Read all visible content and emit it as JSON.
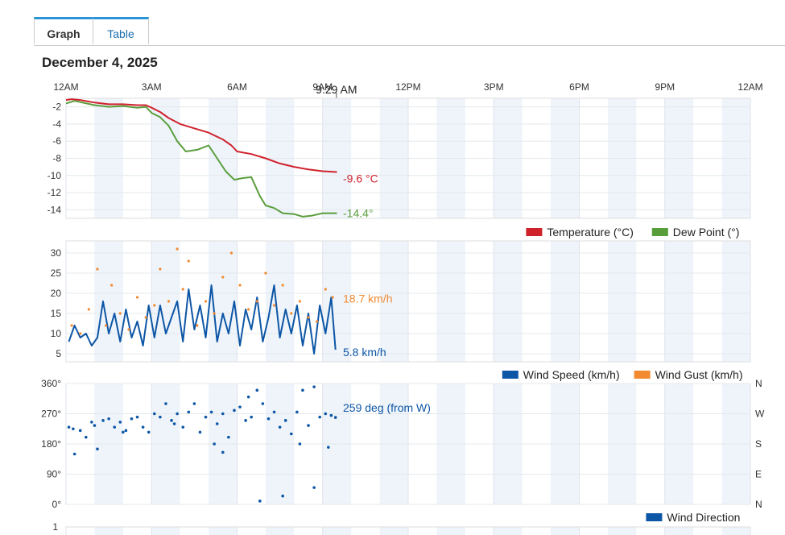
{
  "tabs": [
    {
      "label": "Graph",
      "active": true
    },
    {
      "label": "Table",
      "active": false
    }
  ],
  "date": "December 4, 2025",
  "time_labels": [
    "12AM",
    "3AM",
    "6AM",
    "9AM",
    "12PM",
    "3PM",
    "6PM",
    "9PM",
    "12AM"
  ],
  "cursor_label": "9:29 AM",
  "chart_data": [
    {
      "type": "line",
      "x_range_hours": [
        0,
        24
      ],
      "x_ticks": [
        "12AM",
        "3AM",
        "6AM",
        "9AM",
        "12PM",
        "3PM",
        "6PM",
        "9PM",
        "12AM"
      ],
      "y_ticks": [
        "-2",
        "-4",
        "-6",
        "-8",
        "-10",
        "-12",
        "-14"
      ],
      "ylim": [
        -15,
        -1
      ],
      "series": [
        {
          "name": "Temperature (°C)",
          "color": "#d0222d",
          "x": [
            0,
            0.2,
            0.5,
            1,
            1.5,
            2,
            2.5,
            2.8,
            3,
            3.3,
            3.6,
            4,
            4.5,
            5,
            5.5,
            5.8,
            6,
            6.5,
            7,
            7.5,
            8,
            8.5,
            9,
            9.5,
            9.5
          ],
          "y": [
            -1.2,
            -1.1,
            -1.2,
            -1.5,
            -1.7,
            -1.7,
            -1.8,
            -1.8,
            -2.1,
            -2.6,
            -3.3,
            -4.0,
            -4.5,
            -5.0,
            -5.8,
            -6.5,
            -7.2,
            -7.5,
            -8.0,
            -8.6,
            -9.0,
            -9.3,
            -9.5,
            -9.6,
            -9.6
          ]
        },
        {
          "name": "Dew Point (°)",
          "color": "#5a9e3c",
          "x": [
            0,
            0.3,
            1,
            1.5,
            2,
            2.5,
            2.8,
            3,
            3.3,
            3.6,
            3.9,
            4.2,
            4.6,
            5,
            5.3,
            5.6,
            5.9,
            6.2,
            6.5,
            6.8,
            7,
            7.3,
            7.6,
            8,
            8.3,
            8.6,
            9,
            9.3,
            9.5
          ],
          "y": [
            -1.6,
            -1.3,
            -1.8,
            -2.0,
            -1.9,
            -2.1,
            -2.0,
            -2.7,
            -3.2,
            -4.2,
            -6.0,
            -7.2,
            -7.0,
            -6.5,
            -8.0,
            -9.5,
            -10.5,
            -10.3,
            -10.2,
            -12.4,
            -13.5,
            -13.8,
            -14.4,
            -14.5,
            -14.8,
            -14.7,
            -14.4,
            -14.4,
            -14.4
          ]
        }
      ],
      "current_labels": [
        {
          "text": "-9.6 °C",
          "color": "#d0222d",
          "value": -9.6
        },
        {
          "text": "-14.4°",
          "color": "#5a9e3c",
          "value": -14.4
        }
      ],
      "legend": [
        {
          "label": "Temperature (°C)",
          "color": "#d0222d"
        },
        {
          "label": "Dew Point (°)",
          "color": "#5a9e3c"
        }
      ],
      "legend_position": "bottom-right"
    },
    {
      "type": "line",
      "x_range_hours": [
        0,
        24
      ],
      "y_ticks": [
        "30",
        "25",
        "20",
        "15",
        "10",
        "5"
      ],
      "ylim": [
        3,
        33
      ],
      "series": [
        {
          "name": "Wind Speed (km/h)",
          "color": "#0d56a6",
          "x": [
            0.1,
            0.3,
            0.5,
            0.7,
            0.9,
            1.1,
            1.3,
            1.5,
            1.7,
            1.9,
            2.1,
            2.3,
            2.5,
            2.7,
            2.9,
            3.1,
            3.3,
            3.5,
            3.7,
            3.9,
            4.1,
            4.3,
            4.5,
            4.7,
            4.9,
            5.1,
            5.3,
            5.5,
            5.7,
            5.9,
            6.1,
            6.3,
            6.5,
            6.7,
            6.9,
            7.1,
            7.3,
            7.5,
            7.7,
            7.9,
            8.1,
            8.3,
            8.5,
            8.7,
            8.9,
            9.1,
            9.3,
            9.45
          ],
          "y": [
            8,
            12,
            9,
            10,
            7,
            9,
            18,
            10,
            15,
            8,
            16,
            9,
            13,
            7,
            17,
            9,
            17,
            10,
            14,
            18,
            8,
            21,
            11,
            17,
            9,
            22,
            8,
            15,
            10,
            18,
            7,
            16,
            11,
            19,
            8,
            14,
            22,
            9,
            16,
            10,
            17,
            7,
            15,
            5,
            17,
            10,
            19,
            6
          ]
        },
        {
          "name": "Wind Gust (km/h)",
          "color": "#f28a30",
          "x": [
            0.2,
            0.5,
            0.8,
            1.1,
            1.4,
            1.6,
            1.9,
            2.2,
            2.5,
            2.8,
            3.1,
            3.3,
            3.6,
            3.9,
            4.1,
            4.3,
            4.6,
            4.9,
            5.2,
            5.5,
            5.8,
            6.1,
            6.4,
            6.7,
            7.0,
            7.3,
            7.6,
            7.9,
            8.2,
            8.5,
            8.8,
            9.1,
            9.35
          ],
          "y": [
            12,
            10,
            16,
            26,
            12,
            22,
            15,
            11,
            19,
            14,
            17,
            26,
            18,
            31,
            21,
            28,
            12,
            18,
            15,
            24,
            30,
            22,
            16,
            18,
            25,
            17,
            22,
            15,
            18,
            14,
            13,
            21,
            19
          ]
        }
      ],
      "current_labels": [
        {
          "text": "18.7 km/h",
          "color": "#f28a30",
          "value": 18.7
        },
        {
          "text": "5.8 km/h",
          "color": "#0d56a6",
          "value": 5.8
        }
      ],
      "legend": [
        {
          "label": "Wind Speed (km/h)",
          "color": "#0d56a6"
        },
        {
          "label": "Wind Gust (km/h)",
          "color": "#f28a30"
        }
      ],
      "legend_position": "bottom-right"
    },
    {
      "type": "scatter",
      "x_range_hours": [
        0,
        24
      ],
      "y_ticks": [
        "360°",
        "270°",
        "180°",
        "90°",
        "0°"
      ],
      "y_ticks_right": [
        "N",
        "W",
        "S",
        "E",
        "N"
      ],
      "ylim": [
        0,
        360
      ],
      "series": [
        {
          "name": "Wind Direction",
          "color": "#0d56a6",
          "x": [
            0.1,
            0.3,
            0.5,
            0.7,
            0.9,
            1.1,
            1.3,
            1.5,
            1.7,
            1.9,
            2.1,
            2.3,
            2.5,
            2.7,
            2.9,
            3.1,
            3.3,
            3.5,
            3.7,
            3.9,
            4.1,
            4.3,
            4.5,
            4.7,
            4.9,
            5.1,
            5.3,
            5.5,
            5.7,
            5.9,
            6.1,
            6.3,
            6.5,
            6.7,
            6.9,
            7.1,
            7.3,
            7.5,
            7.7,
            7.9,
            8.1,
            8.3,
            8.5,
            8.7,
            8.9,
            9.1,
            9.3,
            9.45,
            0.25,
            1.0,
            2.0,
            3.8,
            5.2,
            5.5,
            6.4,
            6.8,
            7.6,
            8.2,
            8.7,
            9.2
          ],
          "y": [
            230,
            150,
            220,
            200,
            245,
            165,
            250,
            255,
            230,
            245,
            220,
            255,
            260,
            230,
            215,
            270,
            260,
            300,
            250,
            270,
            230,
            275,
            300,
            215,
            260,
            275,
            240,
            270,
            200,
            280,
            290,
            250,
            260,
            340,
            300,
            255,
            275,
            230,
            250,
            210,
            275,
            340,
            235,
            350,
            260,
            270,
            265,
            259,
            225,
            235,
            215,
            240,
            180,
            155,
            320,
            10,
            25,
            180,
            50,
            170
          ]
        }
      ],
      "current_labels": [
        {
          "text": "259 deg (from W)",
          "color": "#0d56a6",
          "value": 259
        }
      ],
      "legend": [
        {
          "label": "Wind Direction",
          "color": "#0d56a6"
        }
      ],
      "legend_position": "bottom-right"
    },
    {
      "type": "line",
      "x_range_hours": [
        0,
        24
      ],
      "y_ticks": [
        "1"
      ],
      "series": []
    }
  ]
}
